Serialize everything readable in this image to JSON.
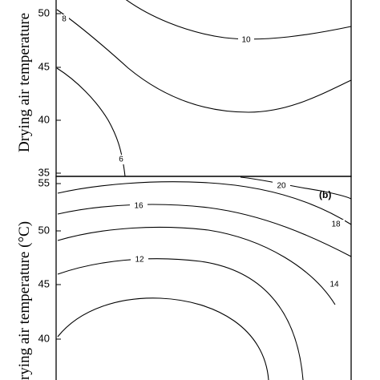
{
  "chart_data": [
    {
      "type": "contour",
      "panel": "a",
      "ylabel": "Drying air temperature",
      "y_ticks": [
        35,
        40,
        45,
        50
      ],
      "contour_levels": [
        {
          "level": 6,
          "label": "6"
        },
        {
          "level": 8,
          "label": "8"
        },
        {
          "level": 10,
          "label": "10"
        }
      ]
    },
    {
      "type": "contour",
      "panel": "b",
      "panel_tag": "(b)",
      "ylabel": "rying air temperature (°C)",
      "y_ticks": [
        40,
        45,
        50,
        55
      ],
      "contour_levels": [
        {
          "level": 12,
          "label": "12"
        },
        {
          "level": 14,
          "label": "14"
        },
        {
          "level": 16,
          "label": "16"
        },
        {
          "level": 18,
          "label": "18"
        },
        {
          "level": 20,
          "label": "20"
        }
      ]
    }
  ]
}
